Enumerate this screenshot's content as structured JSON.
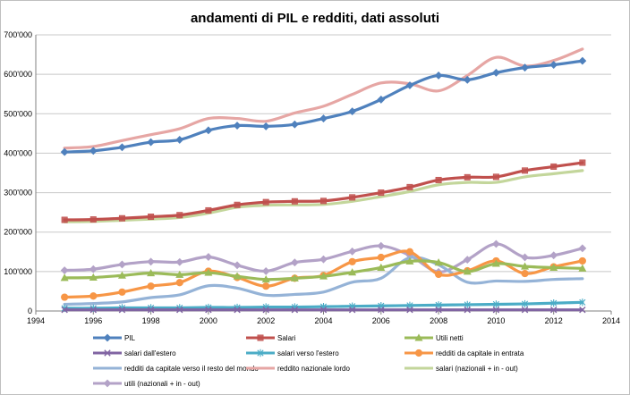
{
  "chart_data": {
    "type": "line",
    "title": "andamenti di PIL e redditi, dati assoluti",
    "xlabel": "",
    "ylabel": "",
    "xlim": [
      1994,
      2014
    ],
    "ylim": [
      0,
      700000
    ],
    "x_ticks": [
      "1994",
      "1996",
      "1998",
      "2000",
      "2002",
      "2004",
      "2006",
      "2008",
      "2010",
      "2012",
      "2014"
    ],
    "y_ticks": [
      "0",
      "100'000",
      "200'000",
      "300'000",
      "400'000",
      "500'000",
      "600'000",
      "700'000"
    ],
    "grid": true,
    "legend_position": "bottom",
    "x": [
      1995,
      1996,
      1997,
      1998,
      1999,
      2000,
      2001,
      2002,
      2003,
      2004,
      2005,
      2006,
      2007,
      2008,
      2009,
      2010,
      2011,
      2012,
      2013
    ],
    "series": [
      {
        "name": "PIL",
        "color": "#4f81bd",
        "marker": "diamond",
        "values": [
          403000,
          406000,
          415000,
          428000,
          434000,
          458000,
          470000,
          468000,
          473000,
          488000,
          506000,
          536000,
          572000,
          597000,
          586000,
          604000,
          617000,
          624000,
          634000
        ]
      },
      {
        "name": "Salari",
        "color": "#c0504d",
        "marker": "square",
        "values": [
          231000,
          232000,
          235000,
          239000,
          243000,
          255000,
          269000,
          276000,
          278000,
          279000,
          288000,
          300000,
          314000,
          332000,
          339000,
          340000,
          356000,
          366000,
          376000
        ]
      },
      {
        "name": "Utili netti",
        "color": "#9bbb59",
        "marker": "triangle",
        "values": [
          84000,
          85000,
          90000,
          96000,
          92000,
          97000,
          88000,
          80000,
          83000,
          88000,
          98000,
          110000,
          126000,
          123000,
          100000,
          120000,
          113000,
          110000,
          108000
        ]
      },
      {
        "name": "salari dall'estero",
        "color": "#8064a2",
        "marker": "x",
        "values": [
          3000,
          3000,
          3000,
          3000,
          3000,
          3000,
          3000,
          3000,
          3000,
          3000,
          3000,
          3000,
          3000,
          3000,
          3000,
          3000,
          3000,
          3000,
          3000
        ]
      },
      {
        "name": "salari verso l'estero",
        "color": "#4bacc6",
        "marker": "star",
        "values": [
          7000,
          7000,
          8000,
          8000,
          8000,
          9000,
          9000,
          10000,
          10000,
          11000,
          12000,
          13000,
          14000,
          15000,
          16000,
          17000,
          18000,
          20000,
          22000
        ]
      },
      {
        "name": "redditi da capitale in entrata",
        "color": "#f79646",
        "marker": "circle",
        "values": [
          35000,
          38000,
          48000,
          63000,
          72000,
          101000,
          85000,
          63000,
          83000,
          90000,
          125000,
          136000,
          150000,
          93000,
          102000,
          127000,
          95000,
          112000,
          127000
        ]
      },
      {
        "name": "redditi da capitale verso il resto del mondo",
        "color": "#95b3d7",
        "marker": "none",
        "values": [
          17000,
          19000,
          23000,
          34000,
          41000,
          64000,
          58000,
          40000,
          42000,
          48000,
          73000,
          83000,
          135000,
          117000,
          73000,
          76000,
          75000,
          80000,
          82000
        ]
      },
      {
        "name": "reddito nazionale lordo",
        "color": "#e6a6a4",
        "marker": "none",
        "values": [
          413000,
          417000,
          432000,
          447000,
          462000,
          488000,
          488000,
          481000,
          502000,
          519000,
          549000,
          578000,
          576000,
          558000,
          597000,
          643000,
          621000,
          635000,
          664000
        ]
      },
      {
        "name": "salari (nazionali + in - out)",
        "color": "#c3d69b",
        "marker": "none",
        "values": [
          226000,
          227000,
          230000,
          233000,
          237000,
          248000,
          263000,
          268000,
          269000,
          270000,
          278000,
          290000,
          303000,
          320000,
          326000,
          326000,
          340000,
          348000,
          356000
        ]
      },
      {
        "name": "utili (nazionali + in - out)",
        "color": "#b3a2c7",
        "marker": "diamond",
        "values": [
          103000,
          106000,
          118000,
          125000,
          124000,
          137000,
          116000,
          101000,
          123000,
          131000,
          151000,
          165000,
          141000,
          99000,
          130000,
          170000,
          136000,
          141000,
          159000
        ]
      }
    ]
  }
}
